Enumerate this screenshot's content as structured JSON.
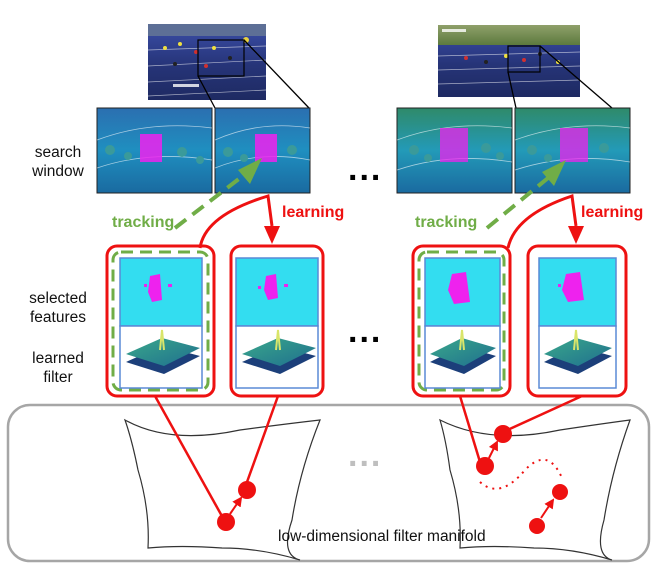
{
  "labels": {
    "search_window": [
      "search",
      "window"
    ],
    "selected_features": [
      "selected",
      "features"
    ],
    "learned_filter": [
      "learned",
      "filter"
    ],
    "tracking": "tracking",
    "learning": "learning",
    "ellipsis": "...",
    "manifold_caption": "low-dimensional filter manifold"
  },
  "colors": {
    "red": "#ee1111",
    "green": "#70ad47",
    "track_blue": "#2c3d8f",
    "feature_cyan": "#33ddf0",
    "feature_magenta": "#ee22ee",
    "frame_blue": "#5a8ad6",
    "gray": "#a6a6a6"
  }
}
